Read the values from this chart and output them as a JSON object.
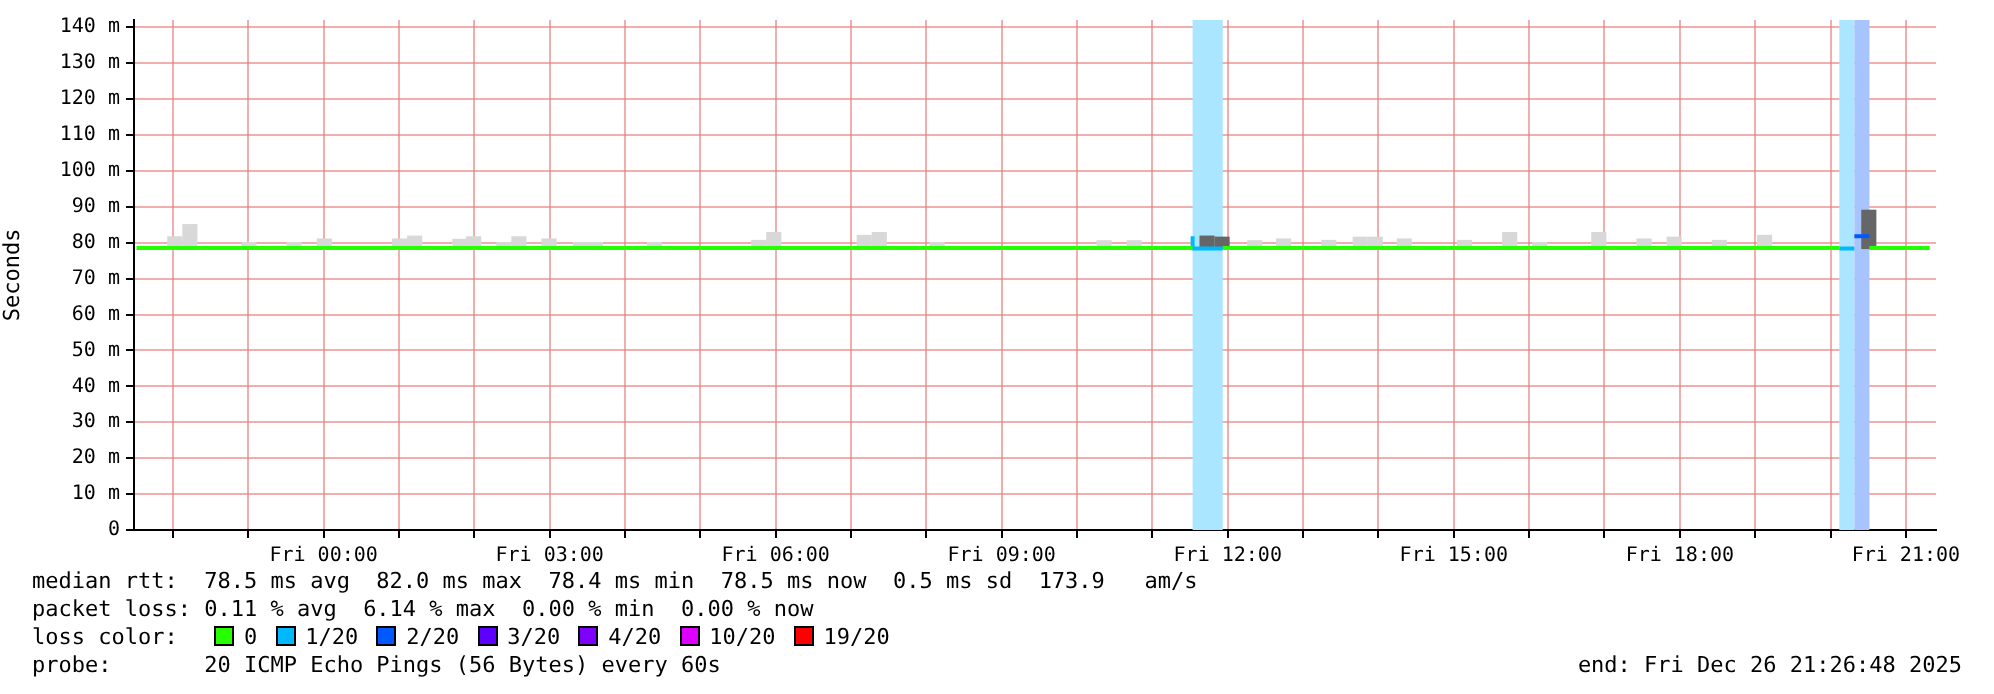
{
  "chart_data": {
    "type": "step",
    "ylabel": "Seconds",
    "legend_title": "loss color:",
    "legend": "bottom",
    "grid": true,
    "marker": "none",
    "line_style": "solid",
    "xlim": [
      "2025-12-25T21:29",
      "2025-12-26T21:24"
    ],
    "xticks": [
      {
        "value": "2025-12-25T22:00",
        "label": null
      },
      {
        "value": "2025-12-25T23:00",
        "label": null
      },
      {
        "value": "2025-12-26T00:00",
        "label": "Fri 00:00"
      },
      {
        "value": "2025-12-26T01:00",
        "label": null
      },
      {
        "value": "2025-12-26T02:00",
        "label": null
      },
      {
        "value": "2025-12-26T03:00",
        "label": "Fri 03:00"
      },
      {
        "value": "2025-12-26T04:00",
        "label": null
      },
      {
        "value": "2025-12-26T05:00",
        "label": null
      },
      {
        "value": "2025-12-26T06:00",
        "label": "Fri 06:00"
      },
      {
        "value": "2025-12-26T07:00",
        "label": null
      },
      {
        "value": "2025-12-26T08:00",
        "label": null
      },
      {
        "value": "2025-12-26T09:00",
        "label": "Fri 09:00"
      },
      {
        "value": "2025-12-26T10:00",
        "label": null
      },
      {
        "value": "2025-12-26T11:00",
        "label": null
      },
      {
        "value": "2025-12-26T12:00",
        "label": "Fri 12:00"
      },
      {
        "value": "2025-12-26T13:00",
        "label": null
      },
      {
        "value": "2025-12-26T14:00",
        "label": null
      },
      {
        "value": "2025-12-26T15:00",
        "label": "Fri 15:00"
      },
      {
        "value": "2025-12-26T16:00",
        "label": null
      },
      {
        "value": "2025-12-26T17:00",
        "label": null
      },
      {
        "value": "2025-12-26T18:00",
        "label": "Fri 18:00"
      },
      {
        "value": "2025-12-26T19:00",
        "label": null
      },
      {
        "value": "2025-12-26T20:00",
        "label": null
      },
      {
        "value": "2025-12-26T21:00",
        "label": "Fri 21:00"
      }
    ],
    "ylim": [
      0,
      142
    ],
    "yticks": [
      0,
      {
        "value": 10,
        "label": "10 m"
      },
      {
        "value": 20,
        "label": "20 m"
      },
      {
        "value": 30,
        "label": "30 m"
      },
      {
        "value": 40,
        "label": "40 m"
      },
      {
        "value": 50,
        "label": "50 m"
      },
      {
        "value": 60,
        "label": "60 m"
      },
      {
        "value": 70,
        "label": "70 m"
      },
      {
        "value": 80,
        "label": "80 m"
      },
      {
        "value": 90,
        "label": "90 m"
      },
      {
        "value": 100,
        "label": "100 m"
      },
      {
        "value": 110,
        "label": "110 m"
      },
      {
        "value": 120,
        "label": "120 m"
      },
      {
        "value": 130,
        "label": "130 m"
      },
      {
        "value": 140,
        "label": "140 m"
      }
    ],
    "bands": [
      {
        "axis": "x",
        "from": "2025-12-26T11:32",
        "to": "2025-12-26T11:56",
        "color": "#aae6ff"
      },
      {
        "axis": "x",
        "from": "2025-12-26T20:07",
        "to": "2025-12-26T20:19",
        "color": "#aae6ff"
      },
      {
        "axis": "x",
        "from": "2025-12-26T20:19",
        "to": "2025-12-26T20:31",
        "color": "#a8c4ff"
      }
    ],
    "series": [
      {
        "type": "bar",
        "color": "#d8d8d8",
        "x": [
          "2025-12-25T22:07",
          "2025-12-25T22:19",
          "2025-12-25T23:06",
          "2025-12-25T23:42",
          "2025-12-26T00:06",
          "2025-12-26T01:06",
          "2025-12-26T01:18",
          "2025-12-26T01:54",
          "2025-12-26T02:05",
          "2025-12-26T02:29",
          "2025-12-26T02:41",
          "2025-12-26T03:05",
          "2025-12-26T03:30",
          "2025-12-26T03:42",
          "2025-12-26T04:29",
          "2025-12-26T05:52",
          "2025-12-26T06:04",
          "2025-12-26T07:16",
          "2025-12-26T07:28",
          "2025-12-26T08:14",
          "2025-12-26T10:27",
          "2025-12-26T10:51",
          "2025-12-26T12:27",
          "2025-12-26T12:50",
          "2025-12-26T13:26",
          "2025-12-26T13:51",
          "2025-12-26T14:03",
          "2025-12-26T14:26",
          "2025-12-26T15:14",
          "2025-12-26T15:50",
          "2025-12-26T16:14",
          "2025-12-26T17:01",
          "2025-12-26T17:37",
          "2025-12-26T18:01",
          "2025-12-26T18:37",
          "2025-12-26T19:13"
        ],
        "base": [
          78.4,
          78.4,
          78.4,
          78.4,
          78.4,
          78.4,
          78.4,
          78.4,
          78.4,
          78.4,
          78.4,
          78.4,
          78.4,
          78.4,
          78.4,
          78.4,
          78.4,
          78.4,
          78.4,
          78.4,
          78.4,
          78.4,
          78.4,
          78.4,
          78.4,
          78.4,
          78.4,
          78.4,
          78.4,
          78.4,
          78.4,
          78.4,
          78.4,
          78.4,
          78.4,
          78.4
        ],
        "values": [
          3.2,
          6.6,
          1.6,
          1.6,
          2.6,
          2.6,
          3.4,
          2.5,
          3.2,
          1.6,
          3.2,
          2.6,
          1.6,
          1.6,
          1.6,
          2.2,
          4.4,
          3.6,
          4.4,
          1.6,
          2.1,
          2.1,
          2.1,
          2.6,
          2.2,
          3.1,
          3.1,
          2.6,
          2.2,
          4.4,
          1.6,
          4.4,
          2.6,
          3.1,
          2.2,
          3.6
        ]
      },
      {
        "type": "bar",
        "color": "#666666",
        "x": [
          "2025-12-26T11:38",
          "2025-12-26T11:50",
          "2025-12-26T20:25"
        ],
        "base": [
          78.4,
          78.4,
          78.4
        ],
        "values": [
          3.4,
          3.1,
          10.6
        ]
      },
      {
        "name": "0",
        "color": "#26ff00",
        "x": [
          "2025-12-25T21:31",
          "2025-12-26T11:32",
          "2025-12-26T11:44",
          "2025-12-26T11:56",
          "2025-12-26T20:07",
          "2025-12-26T20:13",
          "2025-12-26T20:31",
          "2025-12-26T21:19"
        ],
        "values": [
          78.5,
          78.5,
          null,
          78.5,
          78.5,
          null,
          78.5,
          78.5
        ]
      },
      {
        "name": "1/20",
        "color": "#00b8ff",
        "x": [
          "2025-12-26T11:32",
          "2025-12-26T11:44",
          "2025-12-26T11:56",
          "2025-12-26T12:00",
          "2025-12-26T20:07",
          "2025-12-26T20:19"
        ],
        "values": [
          81.8,
          78.4,
          78.4,
          null,
          78.4,
          78.4
        ]
      },
      {
        "name": "2/20",
        "color": "#0059ff",
        "x": [
          "2025-12-26T20:19",
          "2025-12-26T20:31"
        ],
        "values": [
          81.8,
          81.8
        ]
      },
      {
        "name": "3/20",
        "color": "#5e00ff"
      },
      {
        "name": "4/20",
        "color": "#7e00ff"
      },
      {
        "name": "10/20",
        "color": "#dd00ff"
      },
      {
        "name": "19/20",
        "color": "#ff0000"
      }
    ],
    "annotations": [
      "median rtt:  78.5 ms avg  82.0 ms max  78.4 ms min  78.5 ms now  0.5 ms sd  173.9   am/s",
      "packet loss: 0.11 % avg  6.14 % max  0.00 % min  0.00 % now",
      "probe:       20 ICMP Echo Pings (56 Bytes) every 60s",
      "end: Fri Dec 26 21:26:48 2025"
    ]
  }
}
